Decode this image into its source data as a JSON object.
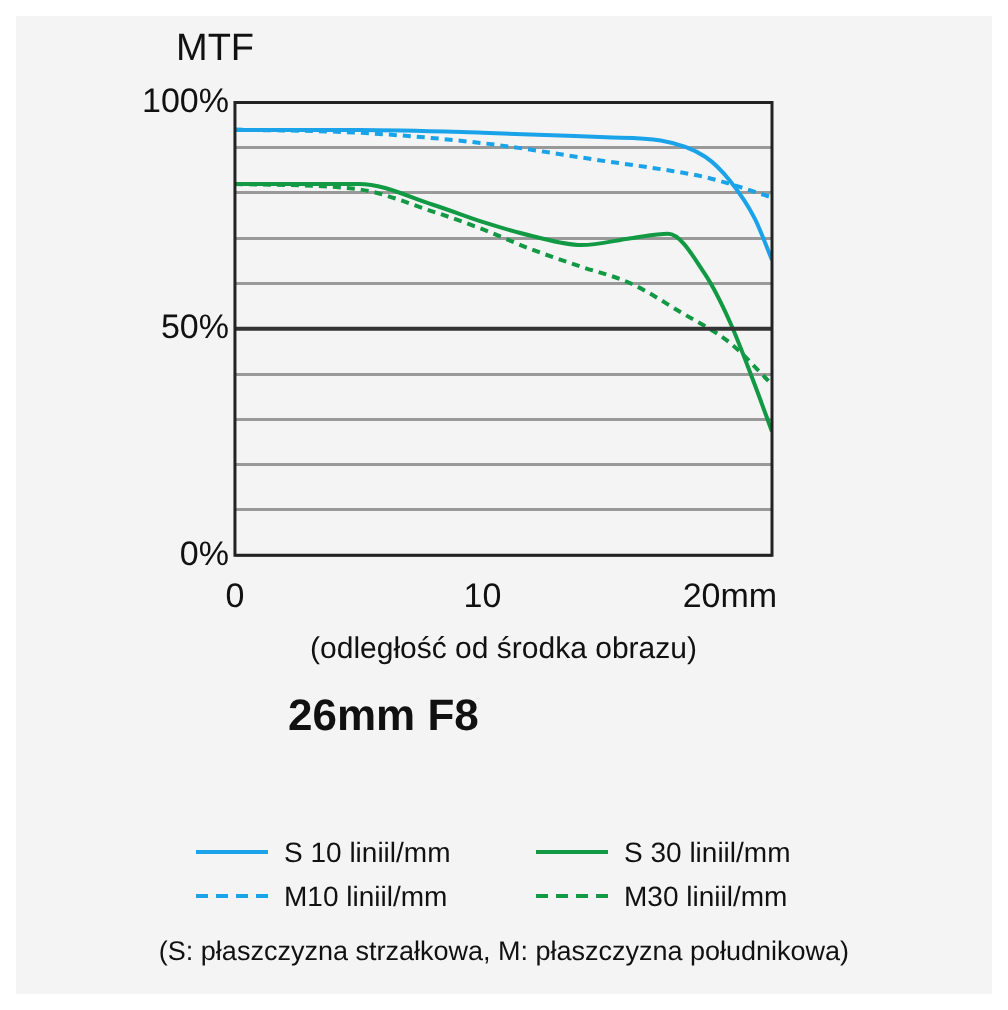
{
  "chart_data": {
    "type": "line",
    "title": "MTF",
    "subtitle": "26mm F8",
    "xlabel": "(odległość od środka obrazu)",
    "xlim": [
      0,
      21.7
    ],
    "xticks": [
      0,
      10,
      {
        "value": 20,
        "label": "20mm"
      }
    ],
    "ylim": [
      0,
      100
    ],
    "yticks": [
      {
        "value": 0,
        "label": "0%"
      },
      {
        "value": 10,
        "label": null
      },
      {
        "value": 20,
        "label": null
      },
      {
        "value": 30,
        "label": null
      },
      {
        "value": 40,
        "label": null
      },
      {
        "value": 50,
        "label": "50%"
      },
      {
        "value": 60,
        "label": null
      },
      {
        "value": 70,
        "label": null
      },
      {
        "value": 80,
        "label": null
      },
      {
        "value": 90,
        "label": null
      },
      {
        "value": 100,
        "label": "100%"
      }
    ],
    "grid": "y",
    "legend": "bottom",
    "marker": "none",
    "ref_lines": [
      {
        "axis": "y",
        "value": 50,
        "color": "#333333"
      }
    ],
    "series": [
      {
        "name": "S 10 liniil/mm",
        "color": "#1aa3e8",
        "line_style": "solid",
        "x": [
          0,
          5,
          10,
          15,
          17.2,
          19,
          20,
          21,
          21.7
        ],
        "values": [
          93.9,
          93.9,
          93.3,
          92.3,
          91.6,
          88,
          82.7,
          74.4,
          65.2
        ]
      },
      {
        "name": "S 30 liniil/mm",
        "color": "#119944",
        "line_style": "solid",
        "x": [
          0,
          5,
          8,
          10,
          12,
          14,
          16,
          17.5,
          19,
          20,
          21,
          21.7
        ],
        "values": [
          82,
          82,
          77.4,
          73.6,
          70.5,
          68.5,
          70,
          71,
          62,
          51.5,
          37.7,
          27.3
        ]
      },
      {
        "name": "M10 liniil/mm",
        "color": "#1aa3e8",
        "line_style": "dashed",
        "x": [
          0,
          5,
          10,
          15,
          17.5,
          19,
          20,
          21.7
        ],
        "values": [
          94,
          93.3,
          91,
          87,
          85,
          83.5,
          82,
          79
        ]
      },
      {
        "name": "M30 liniil/mm",
        "color": "#119944",
        "line_style": "dashed",
        "x": [
          0,
          5,
          8,
          10,
          12,
          14,
          16,
          18,
          20,
          21.7
        ],
        "values": [
          82,
          80.8,
          75.9,
          72,
          67.5,
          63.7,
          60,
          53.7,
          46.9,
          37.7
        ]
      }
    ],
    "annotations": [
      "(S: płaszczyzna strzałkowa, M: płaszczyzna południkowa)"
    ]
  }
}
